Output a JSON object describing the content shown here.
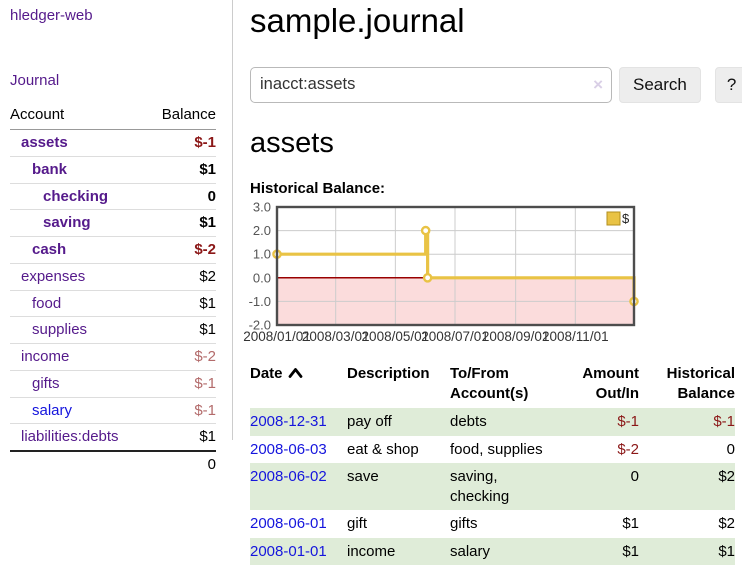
{
  "colors": {
    "accent_purple": "#551a8b",
    "link_blue": "#1515dd",
    "negative": "#8b1717",
    "negative_faded": "#b36b6b",
    "stripe_green": "#dfecd8",
    "chart_gold": "#e9c345",
    "chart_negative_fill": "#fbdcdc",
    "chart_zero_line": "#990000"
  },
  "sidebar": {
    "brand": "hledger-web",
    "journal_link": "Journal",
    "accounts": {
      "header_account": "Account",
      "header_balance": "Balance",
      "rows": [
        {
          "name": "assets",
          "balance": "$-1",
          "indent": 1,
          "bold": true,
          "balance_class": "neg"
        },
        {
          "name": "bank",
          "balance": "$1",
          "indent": 2,
          "bold": true,
          "balance_class": "pos"
        },
        {
          "name": "checking",
          "balance": "0",
          "indent": 3,
          "bold": true,
          "balance_class": "pos"
        },
        {
          "name": "saving",
          "balance": "$1",
          "indent": 3,
          "bold": true,
          "balance_class": "pos"
        },
        {
          "name": "cash",
          "balance": "$-2",
          "indent": 2,
          "bold": true,
          "balance_class": "neg"
        },
        {
          "name": "expenses",
          "balance": "$2",
          "indent": 1,
          "bold": false,
          "balance_class": "pos"
        },
        {
          "name": "food",
          "balance": "$1",
          "indent": 2,
          "bold": false,
          "balance_class": "pos"
        },
        {
          "name": "supplies",
          "balance": "$1",
          "indent": 2,
          "bold": false,
          "balance_class": "pos"
        },
        {
          "name": "income",
          "balance": "$-2",
          "indent": 1,
          "bold": false,
          "balance_class": "negf"
        },
        {
          "name": "gifts",
          "balance": "$-1",
          "indent": 2,
          "bold": false,
          "balance_class": "negf"
        },
        {
          "name": "salary",
          "balance": "$-1",
          "indent": 2,
          "bold": false,
          "balance_class": "negf",
          "unvisited": true
        },
        {
          "name": "liabilities:debts",
          "balance": "$1",
          "indent": 1,
          "bold": false,
          "balance_class": "pos"
        }
      ],
      "total": "0"
    }
  },
  "header": {
    "title": "sample.journal"
  },
  "search": {
    "value": "inacct:assets",
    "clear_icon": "×",
    "button_label": "Search",
    "help_label": "?"
  },
  "account_page": {
    "heading": "assets",
    "section_label": "Historical Balance:"
  },
  "chart_data": {
    "type": "line",
    "step": "after",
    "title": "Historical Balance:",
    "x_start": "2008-01-01",
    "x_end": "2008-12-31",
    "ylim": [
      -2,
      3
    ],
    "yticks": [
      "3.0",
      "2.0",
      "1.0",
      "0.0",
      "-1.0",
      "-2.0"
    ],
    "ytick_values": [
      3,
      2,
      1,
      0,
      -1,
      -2
    ],
    "xticks": [
      {
        "label": "2008/01/01",
        "date": "2008-01-01"
      },
      {
        "label": "2008/03/01",
        "date": "2008-03-01"
      },
      {
        "label": "2008/05/01",
        "date": "2008-05-01"
      },
      {
        "label": "2008/07/01",
        "date": "2008-07-01"
      },
      {
        "label": "2008/09/01",
        "date": "2008-09-01"
      },
      {
        "label": "2008/11/01",
        "date": "2008-11-01"
      }
    ],
    "series": [
      {
        "name": "$",
        "color": "#e9c345",
        "points": [
          {
            "date": "2008-01-01",
            "value": 1
          },
          {
            "date": "2008-06-01",
            "value": 2
          },
          {
            "date": "2008-06-03",
            "value": 0
          },
          {
            "date": "2008-12-31",
            "value": -1
          }
        ]
      }
    ],
    "legend": {
      "label": "$",
      "position": "top-right"
    },
    "grid": true,
    "negative_fill": "#fbdcdc",
    "zero_line_color": "#990000"
  },
  "register": {
    "headers": {
      "date": "Date",
      "description": "Description",
      "accounts": "To/From Account(s)",
      "amount": "Amount Out/In",
      "balance": "Historical Balance"
    },
    "rows": [
      {
        "date": "2008-12-31",
        "description": "pay off",
        "accounts": "debts",
        "amount": "$-1",
        "amount_neg": true,
        "balance": "$-1",
        "balance_neg": true
      },
      {
        "date": "2008-06-03",
        "description": "eat & shop",
        "accounts": "food, supplies",
        "amount": "$-2",
        "amount_neg": true,
        "balance": "0",
        "balance_neg": false
      },
      {
        "date": "2008-06-02",
        "description": "save",
        "accounts": "saving, checking",
        "amount": "0",
        "amount_neg": false,
        "balance": "$2",
        "balance_neg": false
      },
      {
        "date": "2008-06-01",
        "description": "gift",
        "accounts": "gifts",
        "amount": "$1",
        "amount_neg": false,
        "balance": "$2",
        "balance_neg": false
      },
      {
        "date": "2008-01-01",
        "description": "income",
        "accounts": "salary",
        "amount": "$1",
        "amount_neg": false,
        "balance": "$1",
        "balance_neg": false
      }
    ]
  }
}
